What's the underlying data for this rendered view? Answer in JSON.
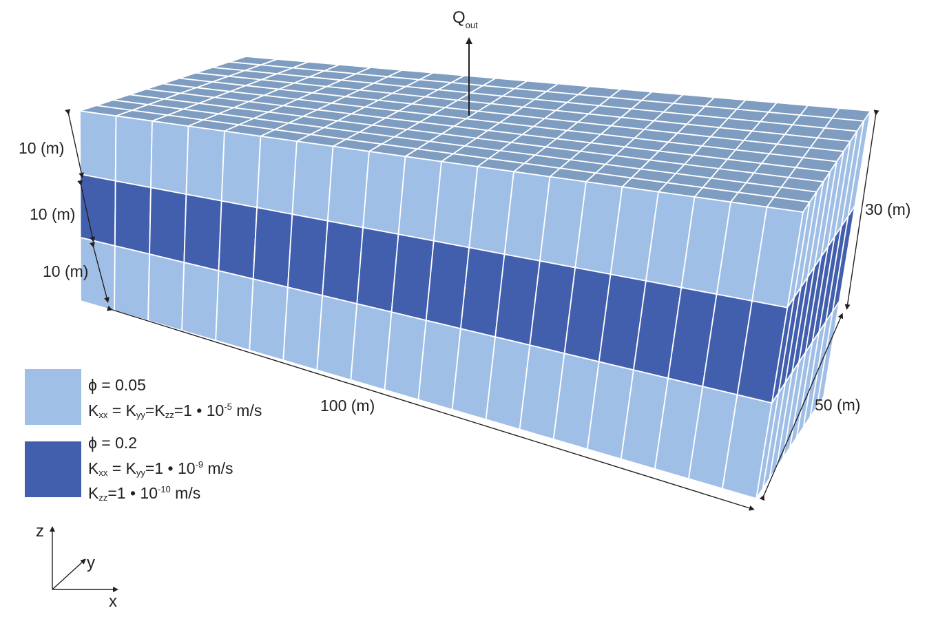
{
  "colors": {
    "upper_layer_front": "#a0bfe6",
    "middle_layer_front": "#425fae",
    "top_face": "#7f9dc0",
    "arrow": "#231f20"
  },
  "model": {
    "cells_x": 20,
    "cells_y": 10,
    "layers": 3,
    "middle_layer_index": 1
  },
  "flow": {
    "label": "Q",
    "subscript": "out"
  },
  "dimensions": {
    "layer_top": "10 (m)",
    "layer_middle": "10 (m)",
    "layer_bottom": "10 (m)",
    "length": "100 (m)",
    "width": "50 (m)",
    "height": "30 (m)"
  },
  "legend": {
    "light": {
      "phi": "ϕ = 0.05",
      "k_a": "K",
      "k_a_sub": "xx",
      "k_eq1": " = K",
      "k_b_sub": "yy",
      "k_eq2": "=K",
      "k_c_sub": "zz",
      "k_val": "=1 • 10",
      "k_exp": "-5",
      "k_unit": " m/s"
    },
    "dark": {
      "phi": "ϕ = 0.2",
      "kh_a": "K",
      "kh_a_sub": "xx",
      "kh_eq": " = K",
      "kh_b_sub": "yy",
      "kh_val": "=1 • 10",
      "kh_exp": "-9",
      "kh_unit": " m/s",
      "kv_a": "K",
      "kv_a_sub": "zz",
      "kv_val": "=1 • 10",
      "kv_exp": "-10",
      "kv_unit": " m/s"
    }
  },
  "axes": {
    "z": "z",
    "y": "y",
    "x": "x"
  }
}
